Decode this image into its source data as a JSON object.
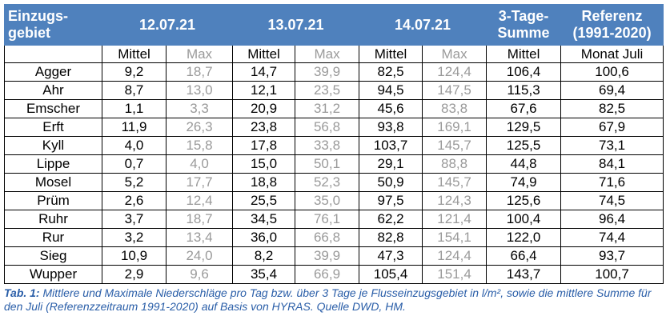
{
  "table": {
    "header": [
      "Einzugs-\ngebiet",
      "12.07.21",
      "13.07.21",
      "14.07.21",
      "3-Tage-\nSumme",
      "Referenz\n(1991-2020)"
    ],
    "subheader": [
      "Mittel",
      "Max",
      "Mittel",
      "Max",
      "Mittel",
      "Max",
      "Mittel",
      "Monat Juli"
    ],
    "rows": [
      [
        "Agger",
        "9,2",
        "18,7",
        "14,7",
        "39,9",
        "82,5",
        "124,4",
        "106,4",
        "100,6"
      ],
      [
        "Ahr",
        "8,7",
        "13,0",
        "12,1",
        "23,5",
        "94,5",
        "147,5",
        "115,3",
        "69,4"
      ],
      [
        "Emscher",
        "1,1",
        "3,3",
        "20,9",
        "31,2",
        "45,6",
        "83,8",
        "67,6",
        "82,5"
      ],
      [
        "Erft",
        "11,9",
        "26,3",
        "23,8",
        "56,8",
        "93,8",
        "169,1",
        "129,5",
        "67,9"
      ],
      [
        "Kyll",
        "4,0",
        "15,8",
        "17,8",
        "33,8",
        "103,7",
        "145,7",
        "125,5",
        "73,1"
      ],
      [
        "Lippe",
        "0,7",
        "4,0",
        "15,0",
        "50,1",
        "29,1",
        "88,8",
        "44,8",
        "84,1"
      ],
      [
        "Mosel",
        "5,2",
        "17,7",
        "18,8",
        "52,3",
        "50,9",
        "145,7",
        "74,9",
        "71,6"
      ],
      [
        "Prüm",
        "2,6",
        "12,4",
        "25,5",
        "35,0",
        "97,5",
        "124,3",
        "125,6",
        "74,5"
      ],
      [
        "Ruhr",
        "3,7",
        "18,7",
        "34,5",
        "76,1",
        "62,2",
        "121,4",
        "100,4",
        "96,4"
      ],
      [
        "Rur",
        "3,2",
        "13,4",
        "36,0",
        "66,8",
        "82,8",
        "154,1",
        "122,0",
        "74,4"
      ],
      [
        "Sieg",
        "10,9",
        "24,0",
        "8,2",
        "39,9",
        "47,3",
        "124,4",
        "66,4",
        "93,7"
      ],
      [
        "Wupper",
        "2,9",
        "9,6",
        "35,4",
        "66,9",
        "105,4",
        "151,4",
        "143,7",
        "100,7"
      ]
    ]
  },
  "caption": {
    "label": "Tab. 1:",
    "text": "Mittlere und Maximale Niederschläge pro Tag bzw. über 3 Tage je Flusseinzugsgebiet in l/m², sowie die mittlere Summe für den Juli (Referenzzeitraum 1991-2020) auf Basis von HYRAS. Quelle DWD, HM."
  }
}
